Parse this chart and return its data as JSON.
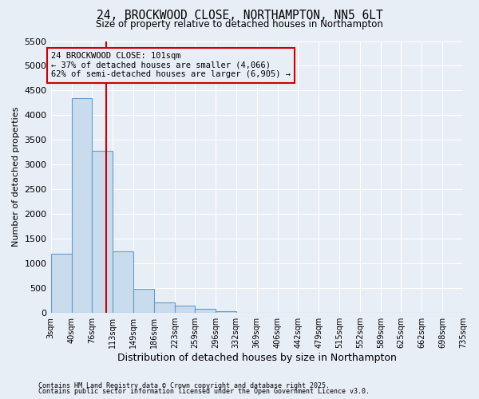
{
  "title_line1": "24, BROCKWOOD CLOSE, NORTHAMPTON, NN5 6LT",
  "title_line2": "Size of property relative to detached houses in Northampton",
  "xlabel": "Distribution of detached houses by size in Northampton",
  "ylabel": "Number of detached properties",
  "footnote1": "Contains HM Land Registry data © Crown copyright and database right 2025.",
  "footnote2": "Contains public sector information licensed under the Open Government Licence v3.0.",
  "bar_color": "#c9dcee",
  "bar_edge_color": "#6699cc",
  "bg_color": "#e8eef6",
  "grid_color": "#ffffff",
  "vline_x": 101,
  "vline_color": "#cc0000",
  "annotation_text": "24 BROCKWOOD CLOSE: 101sqm\n← 37% of detached houses are smaller (4,066)\n62% of semi-detached houses are larger (6,905) →",
  "annotation_box_color": "#cc0000",
  "bins": [
    3,
    40,
    76,
    113,
    149,
    186,
    223,
    259,
    296,
    332,
    369,
    406,
    442,
    479,
    515,
    552,
    589,
    625,
    662,
    698,
    735
  ],
  "bar_heights": [
    1200,
    4350,
    3280,
    1250,
    490,
    210,
    150,
    75,
    40,
    0,
    0,
    0,
    0,
    0,
    0,
    0,
    0,
    0,
    0,
    0
  ],
  "ylim": [
    0,
    5500
  ],
  "yticks": [
    0,
    500,
    1000,
    1500,
    2000,
    2500,
    3000,
    3500,
    4000,
    4500,
    5000,
    5500
  ]
}
